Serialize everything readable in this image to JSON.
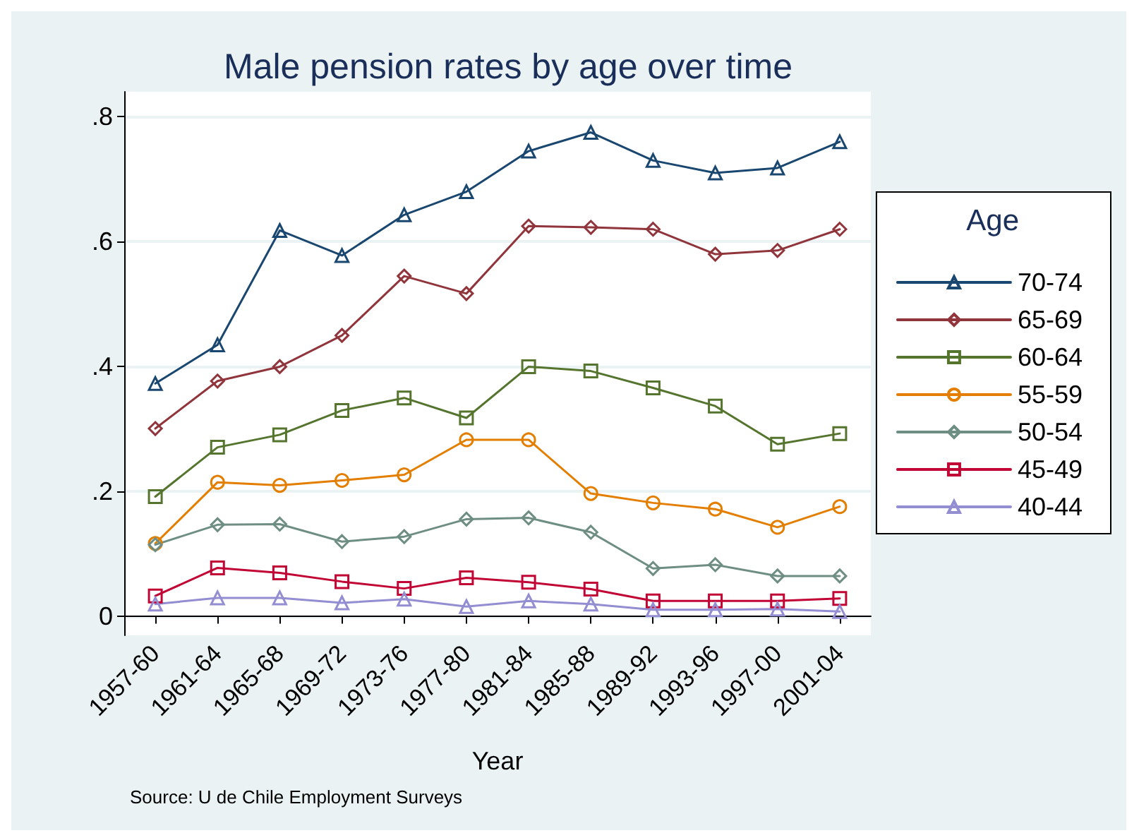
{
  "chart_data": {
    "type": "line",
    "title": "Male pension rates by age over time",
    "xlabel": "Year",
    "legend_title": "Age",
    "annotations": [
      "Source: U de Chile Employment Surveys"
    ],
    "categories": [
      "1957-60",
      "1961-64",
      "1965-68",
      "1969-72",
      "1973-76",
      "1977-80",
      "1981-84",
      "1985-88",
      "1989-92",
      "1993-96",
      "1997-00",
      "2001-04"
    ],
    "ylim": [
      -0.03,
      0.84
    ],
    "yticks": [
      {
        "value": 0,
        "label": "0"
      },
      {
        "value": 0.2,
        "label": ".2"
      },
      {
        "value": 0.4,
        "label": ".4"
      },
      {
        "value": 0.6,
        "label": ".6"
      },
      {
        "value": 0.8,
        "label": ".8"
      }
    ],
    "grid": "y",
    "legend": "right",
    "series": [
      {
        "name": "70-74",
        "color": "#1a476f",
        "marker": "triangle",
        "values": [
          0.373,
          0.435,
          0.618,
          0.578,
          0.643,
          0.68,
          0.745,
          0.775,
          0.73,
          0.71,
          0.718,
          0.76
        ]
      },
      {
        "name": "65-69",
        "color": "#90353b",
        "marker": "diamond",
        "values": [
          0.301,
          0.377,
          0.4,
          0.45,
          0.545,
          0.517,
          0.625,
          0.623,
          0.62,
          0.58,
          0.586,
          0.62
        ]
      },
      {
        "name": "60-64",
        "color": "#55752f",
        "marker": "square",
        "values": [
          0.192,
          0.271,
          0.291,
          0.33,
          0.35,
          0.318,
          0.4,
          0.393,
          0.366,
          0.337,
          0.276,
          0.293
        ]
      },
      {
        "name": "55-59",
        "color": "#e37e00",
        "marker": "circle",
        "values": [
          0.117,
          0.215,
          0.21,
          0.218,
          0.227,
          0.283,
          0.283,
          0.197,
          0.182,
          0.172,
          0.143,
          0.176
        ]
      },
      {
        "name": "50-54",
        "color": "#6e8e84",
        "marker": "diamond",
        "values": [
          0.115,
          0.147,
          0.148,
          0.12,
          0.128,
          0.156,
          0.158,
          0.135,
          0.077,
          0.083,
          0.065,
          0.065
        ]
      },
      {
        "name": "45-49",
        "color": "#c10534",
        "marker": "square",
        "values": [
          0.033,
          0.078,
          0.07,
          0.056,
          0.045,
          0.062,
          0.055,
          0.044,
          0.025,
          0.025,
          0.025,
          0.029
        ]
      },
      {
        "name": "40-44",
        "color": "#938dd2",
        "marker": "triangle",
        "values": [
          0.02,
          0.03,
          0.03,
          0.022,
          0.028,
          0.016,
          0.025,
          0.02,
          0.011,
          0.011,
          0.012,
          0.008
        ]
      }
    ]
  }
}
